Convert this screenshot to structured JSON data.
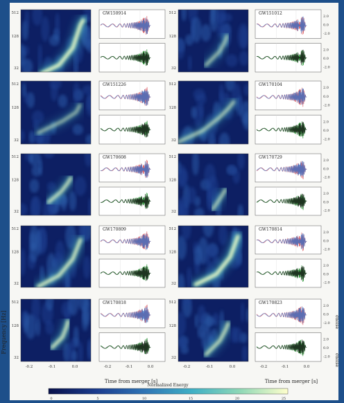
{
  "figure": {
    "frame_color": "#1d4f8a",
    "background": "#f7f7f4",
    "y_axis_label": "Frequency [Hz]",
    "x_axis_label": "Time from merger [s]",
    "freq_ticks": [
      "512",
      "128",
      "32"
    ],
    "time_ticks": [
      "-0.2",
      "-0.1",
      "0.0"
    ],
    "strain_ticks": [
      "2.0",
      "0.0",
      "-2.0"
    ],
    "strain_axis_labels": [
      "σnoise",
      "σnoise"
    ],
    "colorbar": {
      "title": "Normalized Energy",
      "ticks": [
        "0",
        "5",
        "10",
        "15",
        "20",
        "25"
      ],
      "colors": [
        "#08104a",
        "#1b3c8e",
        "#2f74b5",
        "#3fb0c5",
        "#8fd8b6",
        "#ffffcc"
      ]
    },
    "colors": {
      "red": "#e0666a",
      "blue": "#3a6fc4",
      "green": "#2f9a3a",
      "black": "#1a1a1a"
    }
  },
  "chart_data": [
    {
      "type": "heatmap",
      "event": "GW150914",
      "column": "left",
      "row": 0
    },
    {
      "type": "heatmap",
      "event": "GW151012",
      "column": "right",
      "row": 0
    },
    {
      "type": "heatmap",
      "event": "GW151226",
      "column": "left",
      "row": 1
    },
    {
      "type": "heatmap",
      "event": "GW170104",
      "column": "right",
      "row": 1
    },
    {
      "type": "heatmap",
      "event": "GW170608",
      "column": "left",
      "row": 2
    },
    {
      "type": "heatmap",
      "event": "GW170729",
      "column": "right",
      "row": 2
    },
    {
      "type": "heatmap",
      "event": "GW170809",
      "column": "left",
      "row": 3
    },
    {
      "type": "heatmap",
      "event": "GW170814",
      "column": "right",
      "row": 3
    },
    {
      "type": "heatmap",
      "event": "GW170818",
      "column": "left",
      "row": 4
    },
    {
      "type": "heatmap",
      "event": "GW170823",
      "column": "right",
      "row": 4
    }
  ]
}
